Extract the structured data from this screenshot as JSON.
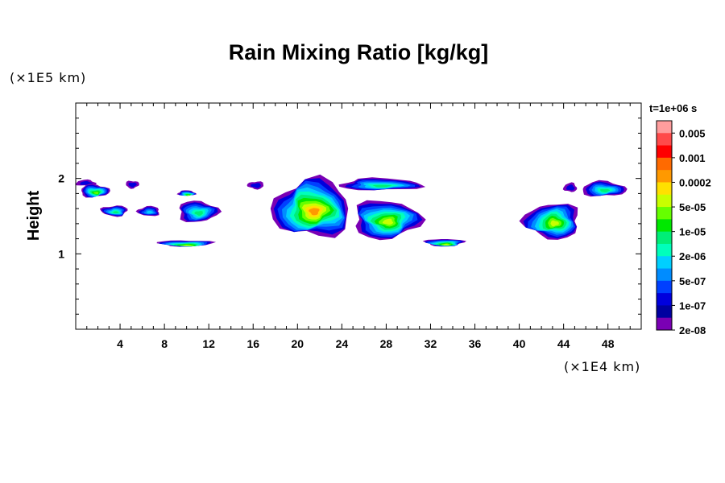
{
  "chart_data": {
    "type": "heatmap",
    "title": "Rain Mixing Ratio [kg/kg]",
    "xlabel": "",
    "ylabel": "Height",
    "x_unit": "(×1E4 km)",
    "y_unit": "(×1E5 km)",
    "xlim": [
      0,
      51
    ],
    "ylim": [
      0,
      3
    ],
    "x_ticks": [
      4,
      8,
      12,
      16,
      20,
      24,
      28,
      32,
      36,
      40,
      44,
      48
    ],
    "y_ticks": [
      1,
      2
    ],
    "time_label": "t=1e+06 s",
    "colorbar": {
      "labels": [
        "0.005",
        "0.001",
        "0.0002",
        "5e-05",
        "1e-05",
        "2e-06",
        "5e-07",
        "1e-07",
        "2e-08"
      ],
      "colors": [
        "#ff9d9d",
        "#ff4a4a",
        "#ff0000",
        "#ff6a00",
        "#ff9900",
        "#ffe000",
        "#c8ff00",
        "#66ff00",
        "#00e800",
        "#00ee77",
        "#00ffbb",
        "#00cfff",
        "#008cff",
        "#0040ff",
        "#0000dd",
        "#0000a0",
        "#7a00b4"
      ]
    },
    "cloud_regions": [
      {
        "x": [
          0.0,
          1.8
        ],
        "y": [
          1.9,
          1.98
        ],
        "max_level": "1e-07"
      },
      {
        "x": [
          0.4,
          3.0
        ],
        "y": [
          1.75,
          1.92
        ],
        "max_level": "1e-05"
      },
      {
        "x": [
          4.5,
          5.7
        ],
        "y": [
          1.87,
          1.97
        ],
        "max_level": "1e-07"
      },
      {
        "x": [
          2.3,
          4.7
        ],
        "y": [
          1.5,
          1.64
        ],
        "max_level": "2e-06"
      },
      {
        "x": [
          5.6,
          7.6
        ],
        "y": [
          1.5,
          1.63
        ],
        "max_level": "5e-07"
      },
      {
        "x": [
          9.2,
          10.8
        ],
        "y": [
          1.77,
          1.84
        ],
        "max_level": "1e-05"
      },
      {
        "x": [
          9.2,
          12.8
        ],
        "y": [
          1.42,
          1.7
        ],
        "max_level": "2e-06"
      },
      {
        "x": [
          7.4,
          12.4
        ],
        "y": [
          1.1,
          1.18
        ],
        "max_level": "5e-05"
      },
      {
        "x": [
          15.5,
          17.0
        ],
        "y": [
          1.86,
          1.96
        ],
        "max_level": "1e-07"
      },
      {
        "x": [
          17.8,
          24.8
        ],
        "y": [
          1.22,
          1.98
        ],
        "max_level": "0.0002"
      },
      {
        "x": [
          23.8,
          31.2
        ],
        "y": [
          1.84,
          2.0
        ],
        "max_level": "2e-06"
      },
      {
        "x": [
          25.0,
          31.0
        ],
        "y": [
          1.2,
          1.71
        ],
        "max_level": "5e-05"
      },
      {
        "x": [
          31.5,
          35.0
        ],
        "y": [
          1.1,
          1.2
        ],
        "max_level": "5e-05"
      },
      {
        "x": [
          40.5,
          45.5
        ],
        "y": [
          1.2,
          1.67
        ],
        "max_level": "5e-05"
      },
      {
        "x": [
          44.0,
          45.2
        ],
        "y": [
          1.82,
          1.94
        ],
        "max_level": "1e-07"
      },
      {
        "x": [
          45.6,
          49.6
        ],
        "y": [
          1.76,
          1.96
        ],
        "max_level": "2e-06"
      }
    ]
  }
}
